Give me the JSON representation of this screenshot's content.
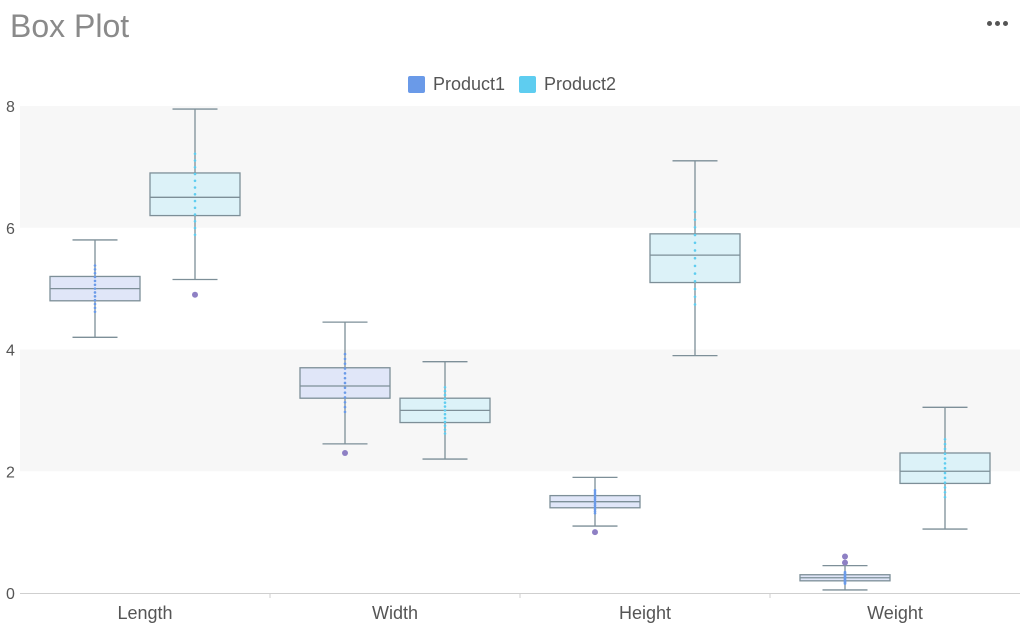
{
  "header": {
    "title": "Box Plot",
    "menu_icon": "more-horizontal-icon"
  },
  "colors": {
    "product1_box": "#e0e6f8",
    "product2_box": "#dcf2f8",
    "product1_swatch": "#6a9ae8",
    "product2_swatch": "#5ecdf0",
    "product1_points": "#6a9ae8",
    "product2_points": "#5ecdf0",
    "outlier": "#8e80c4",
    "whisker": "#7d8f98",
    "band": "#f7f7f7"
  },
  "chart_data": {
    "type": "boxplot",
    "title": "Box Plot",
    "xlabel": "",
    "ylabel": "",
    "ylim": [
      0,
      8
    ],
    "yticks": [
      "0",
      "2",
      "4",
      "6",
      "8"
    ],
    "categories": [
      "Length",
      "Width",
      "Height",
      "Weight"
    ],
    "legend_position": "top-center",
    "series": [
      {
        "name": "Product1",
        "boxes": [
          {
            "min": 4.2,
            "q1": 4.8,
            "median": 5.0,
            "q3": 5.2,
            "max": 5.8,
            "outliers": []
          },
          {
            "min": 2.45,
            "q1": 3.2,
            "median": 3.4,
            "q3": 3.7,
            "max": 4.45,
            "outliers": [
              2.3
            ]
          },
          {
            "min": 1.1,
            "q1": 1.4,
            "median": 1.5,
            "q3": 1.6,
            "max": 1.9,
            "outliers": [
              1.0
            ]
          },
          {
            "min": 0.05,
            "q1": 0.2,
            "median": 0.25,
            "q3": 0.3,
            "max": 0.45,
            "outliers": [
              0.5,
              0.6
            ]
          }
        ]
      },
      {
        "name": "Product2",
        "boxes": [
          {
            "min": 5.15,
            "q1": 6.2,
            "median": 6.5,
            "q3": 6.9,
            "max": 7.95,
            "outliers": [
              4.9
            ]
          },
          {
            "min": 2.2,
            "q1": 2.8,
            "median": 3.0,
            "q3": 3.2,
            "max": 3.8,
            "outliers": []
          },
          {
            "min": 3.9,
            "q1": 5.1,
            "median": 5.55,
            "q3": 5.9,
            "max": 7.1,
            "outliers": []
          },
          {
            "min": 1.05,
            "q1": 1.8,
            "median": 2.0,
            "q3": 2.3,
            "max": 3.05,
            "outliers": []
          }
        ]
      }
    ]
  }
}
